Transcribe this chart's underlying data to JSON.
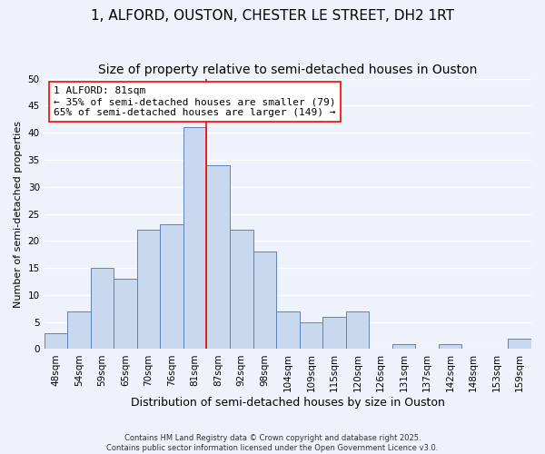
{
  "title": "1, ALFORD, OUSTON, CHESTER LE STREET, DH2 1RT",
  "subtitle": "Size of property relative to semi-detached houses in Ouston",
  "xlabel": "Distribution of semi-detached houses by size in Ouston",
  "ylabel": "Number of semi-detached properties",
  "bin_labels": [
    "48sqm",
    "54sqm",
    "59sqm",
    "65sqm",
    "70sqm",
    "76sqm",
    "81sqm",
    "87sqm",
    "92sqm",
    "98sqm",
    "104sqm",
    "109sqm",
    "115sqm",
    "120sqm",
    "126sqm",
    "131sqm",
    "137sqm",
    "142sqm",
    "148sqm",
    "153sqm",
    "159sqm"
  ],
  "counts": [
    3,
    7,
    15,
    13,
    22,
    23,
    41,
    34,
    22,
    18,
    7,
    5,
    6,
    7,
    0,
    1,
    0,
    1,
    0,
    0,
    2
  ],
  "bar_color": "#c8d8ee",
  "bar_edge_color": "#6080b8",
  "vline_bin_index": 6,
  "vline_color": "red",
  "annotation_line1": "1 ALFORD: 81sqm",
  "annotation_line2": "← 35% of semi-detached houses are smaller (79)",
  "annotation_line3": "65% of semi-detached houses are larger (149) →",
  "annotation_box_color": "white",
  "annotation_box_edge_color": "red",
  "ylim": [
    0,
    50
  ],
  "yticks": [
    0,
    5,
    10,
    15,
    20,
    25,
    30,
    35,
    40,
    45,
    50
  ],
  "background_color": "#eef2fa",
  "footer_text": "Contains HM Land Registry data © Crown copyright and database right 2025.\nContains public sector information licensed under the Open Government Licence v3.0.",
  "title_fontsize": 11,
  "xlabel_fontsize": 9,
  "ylabel_fontsize": 8,
  "tick_fontsize": 7.5,
  "annotation_fontsize": 8,
  "footer_fontsize": 6
}
